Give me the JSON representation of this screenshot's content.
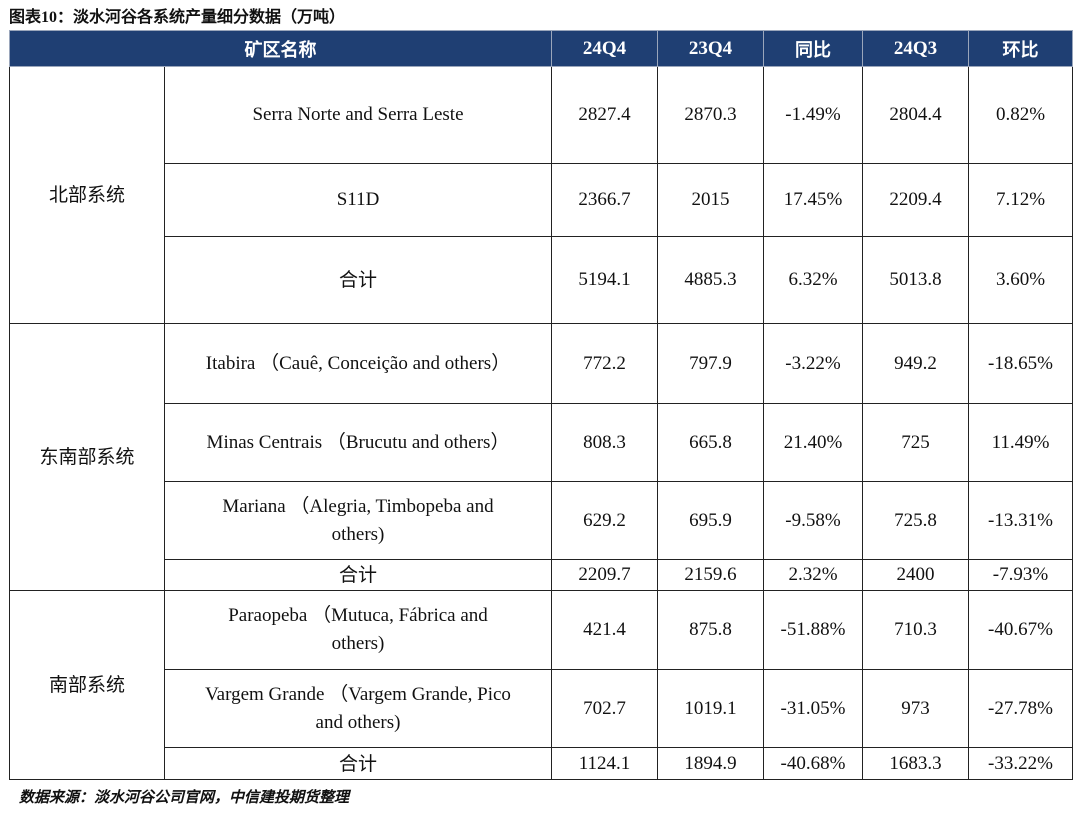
{
  "caption": {
    "prefix": "图表",
    "number": "10",
    "text": "：淡水河谷各系统产量细分数据（万吨）"
  },
  "header": {
    "mine_name": "矿区名称",
    "c1": "24Q4",
    "c2": "23Q4",
    "c3": "同比",
    "c4": "24Q3",
    "c5": "环比"
  },
  "groups": [
    {
      "system": "北部系统",
      "rows": [
        {
          "name": "Serra Norte and Serra Leste",
          "q4_24": "2827.4",
          "q4_23": "2870.3",
          "yoy": "-1.49%",
          "q3_24": "2804.4",
          "qoq": "0.82%"
        },
        {
          "name": "S11D",
          "q4_24": "2366.7",
          "q4_23": "2015",
          "yoy": "17.45%",
          "q3_24": "2209.4",
          "qoq": "7.12%"
        },
        {
          "name": "合计",
          "q4_24": "5194.1",
          "q4_23": "4885.3",
          "yoy": "6.32%",
          "q3_24": "5013.8",
          "qoq": "3.60%"
        }
      ]
    },
    {
      "system": "东南部系统",
      "rows": [
        {
          "name": "Itabira （Cauê, Conceição and others）",
          "q4_24": "772.2",
          "q4_23": "797.9",
          "yoy": "-3.22%",
          "q3_24": "949.2",
          "qoq": "-18.65%"
        },
        {
          "name": "Minas Centrais （Brucutu and others）",
          "q4_24": "808.3",
          "q4_23": "665.8",
          "yoy": "21.40%",
          "q3_24": "725",
          "qoq": "11.49%"
        },
        {
          "name": "Mariana （Alegria, Timbopeba and others)",
          "q4_24": "629.2",
          "q4_23": "695.9",
          "yoy": "-9.58%",
          "q3_24": "725.8",
          "qoq": "-13.31%"
        },
        {
          "name": "合计",
          "q4_24": "2209.7",
          "q4_23": "2159.6",
          "yoy": "2.32%",
          "q3_24": "2400",
          "qoq": "-7.93%"
        }
      ]
    },
    {
      "system": "南部系统",
      "rows": [
        {
          "name": "Paraopeba （Mutuca, Fábrica and others)",
          "q4_24": "421.4",
          "q4_23": "875.8",
          "yoy": "-51.88%",
          "q3_24": "710.3",
          "qoq": "-40.67%"
        },
        {
          "name": "Vargem Grande （Vargem Grande, Pico and others)",
          "q4_24": "702.7",
          "q4_23": "1019.1",
          "yoy": "-31.05%",
          "q3_24": "973",
          "qoq": "-27.78%"
        },
        {
          "name": "合计",
          "q4_24": "1124.1",
          "q4_23": "1894.9",
          "yoy": "-40.68%",
          "q3_24": "1683.3",
          "qoq": "-33.22%"
        }
      ]
    }
  ],
  "footer": "数据来源：淡水河谷公司官网，中信建投期货整理"
}
